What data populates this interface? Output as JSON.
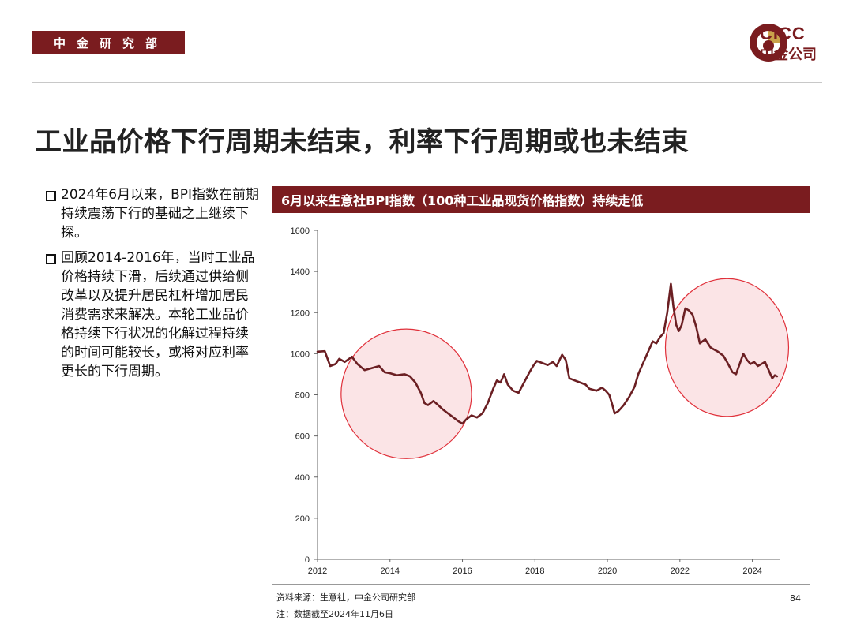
{
  "header": {
    "department": "中金研究部",
    "logo_en": "CICC",
    "logo_cn": "中金公司"
  },
  "page_title": "工业品价格下行周期未结束，利率下行周期或也未结束",
  "bullets": [
    "2024年6月以来，BPI指数在前期持续震荡下行的基础之上继续下探。",
    "回顾2014-2016年，当时工业品价格持续下滑，后续通过供给侧改革以及提升居民杠杆增加居民消费需求来解决。本轮工业品价格持续下行状况的化解过程持续的时间可能较长，或将对应利率更长的下行周期。"
  ],
  "footer": {
    "source": "资料来源：生意社，中金公司研究部",
    "note": "注：数据截至2024年11月6日",
    "page_number": "84"
  },
  "colors": {
    "brand": "#7a1c1f",
    "line": "#6b1f23",
    "highlight_stroke": "#e0303a",
    "highlight_fill": "#fbe4e6"
  },
  "chart_data": {
    "type": "line",
    "title": "6月以来生意社BPI指数（100种工业品现货价格指数）持续走低",
    "xlabel": "",
    "ylabel": "",
    "xlim": [
      2012.0,
      2024.75
    ],
    "ylim": [
      0,
      1600
    ],
    "x_ticks": [
      2012,
      2014,
      2016,
      2018,
      2020,
      2022,
      2024
    ],
    "y_ticks": [
      0,
      200,
      400,
      600,
      800,
      1000,
      1200,
      1400,
      1600
    ],
    "grid": false,
    "series": [
      {
        "name": "",
        "points": [
          [
            2012.0,
            1010
          ],
          [
            2012.2,
            1012
          ],
          [
            2012.35,
            940
          ],
          [
            2012.5,
            950
          ],
          [
            2012.6,
            975
          ],
          [
            2012.75,
            960
          ],
          [
            2012.95,
            985
          ],
          [
            2013.1,
            950
          ],
          [
            2013.3,
            920
          ],
          [
            2013.5,
            930
          ],
          [
            2013.7,
            940
          ],
          [
            2013.85,
            910
          ],
          [
            2014.0,
            905
          ],
          [
            2014.2,
            895
          ],
          [
            2014.4,
            900
          ],
          [
            2014.55,
            890
          ],
          [
            2014.7,
            860
          ],
          [
            2014.85,
            810
          ],
          [
            2014.95,
            760
          ],
          [
            2015.05,
            750
          ],
          [
            2015.2,
            770
          ],
          [
            2015.3,
            755
          ],
          [
            2015.45,
            730
          ],
          [
            2015.6,
            710
          ],
          [
            2015.75,
            690
          ],
          [
            2015.9,
            670
          ],
          [
            2016.0,
            660
          ],
          [
            2016.1,
            680
          ],
          [
            2016.25,
            700
          ],
          [
            2016.4,
            690
          ],
          [
            2016.55,
            710
          ],
          [
            2016.7,
            760
          ],
          [
            2016.85,
            830
          ],
          [
            2016.95,
            870
          ],
          [
            2017.05,
            860
          ],
          [
            2017.15,
            900
          ],
          [
            2017.25,
            850
          ],
          [
            2017.4,
            820
          ],
          [
            2017.55,
            810
          ],
          [
            2017.7,
            860
          ],
          [
            2017.85,
            910
          ],
          [
            2017.95,
            940
          ],
          [
            2018.05,
            965
          ],
          [
            2018.2,
            955
          ],
          [
            2018.35,
            945
          ],
          [
            2018.5,
            960
          ],
          [
            2018.6,
            940
          ],
          [
            2018.75,
            995
          ],
          [
            2018.85,
            970
          ],
          [
            2018.95,
            880
          ],
          [
            2019.1,
            870
          ],
          [
            2019.25,
            860
          ],
          [
            2019.4,
            850
          ],
          [
            2019.5,
            830
          ],
          [
            2019.7,
            820
          ],
          [
            2019.85,
            835
          ],
          [
            2019.95,
            820
          ],
          [
            2020.05,
            800
          ],
          [
            2020.12,
            760
          ],
          [
            2020.2,
            710
          ],
          [
            2020.3,
            720
          ],
          [
            2020.45,
            750
          ],
          [
            2020.6,
            790
          ],
          [
            2020.75,
            840
          ],
          [
            2020.85,
            900
          ],
          [
            2020.95,
            940
          ],
          [
            2021.05,
            980
          ],
          [
            2021.15,
            1020
          ],
          [
            2021.25,
            1060
          ],
          [
            2021.35,
            1050
          ],
          [
            2021.45,
            1080
          ],
          [
            2021.55,
            1100
          ],
          [
            2021.65,
            1200
          ],
          [
            2021.75,
            1340
          ],
          [
            2021.82,
            1230
          ],
          [
            2021.9,
            1140
          ],
          [
            2021.97,
            1110
          ],
          [
            2022.05,
            1140
          ],
          [
            2022.15,
            1220
          ],
          [
            2022.25,
            1210
          ],
          [
            2022.35,
            1190
          ],
          [
            2022.45,
            1130
          ],
          [
            2022.55,
            1050
          ],
          [
            2022.7,
            1070
          ],
          [
            2022.85,
            1030
          ],
          [
            2022.95,
            1020
          ],
          [
            2023.05,
            1010
          ],
          [
            2023.2,
            990
          ],
          [
            2023.3,
            960
          ],
          [
            2023.45,
            910
          ],
          [
            2023.55,
            900
          ],
          [
            2023.65,
            950
          ],
          [
            2023.75,
            1000
          ],
          [
            2023.85,
            970
          ],
          [
            2023.95,
            950
          ],
          [
            2024.05,
            960
          ],
          [
            2024.15,
            940
          ],
          [
            2024.25,
            950
          ],
          [
            2024.35,
            960
          ],
          [
            2024.45,
            920
          ],
          [
            2024.55,
            880
          ],
          [
            2024.62,
            895
          ],
          [
            2024.68,
            890
          ]
        ]
      }
    ],
    "highlights": [
      {
        "center": [
          2014.45,
          805
        ],
        "rx": 1.8,
        "ry": 315
      },
      {
        "center": [
          2023.3,
          1030
        ],
        "rx": 1.7,
        "ry": 335
      }
    ]
  }
}
